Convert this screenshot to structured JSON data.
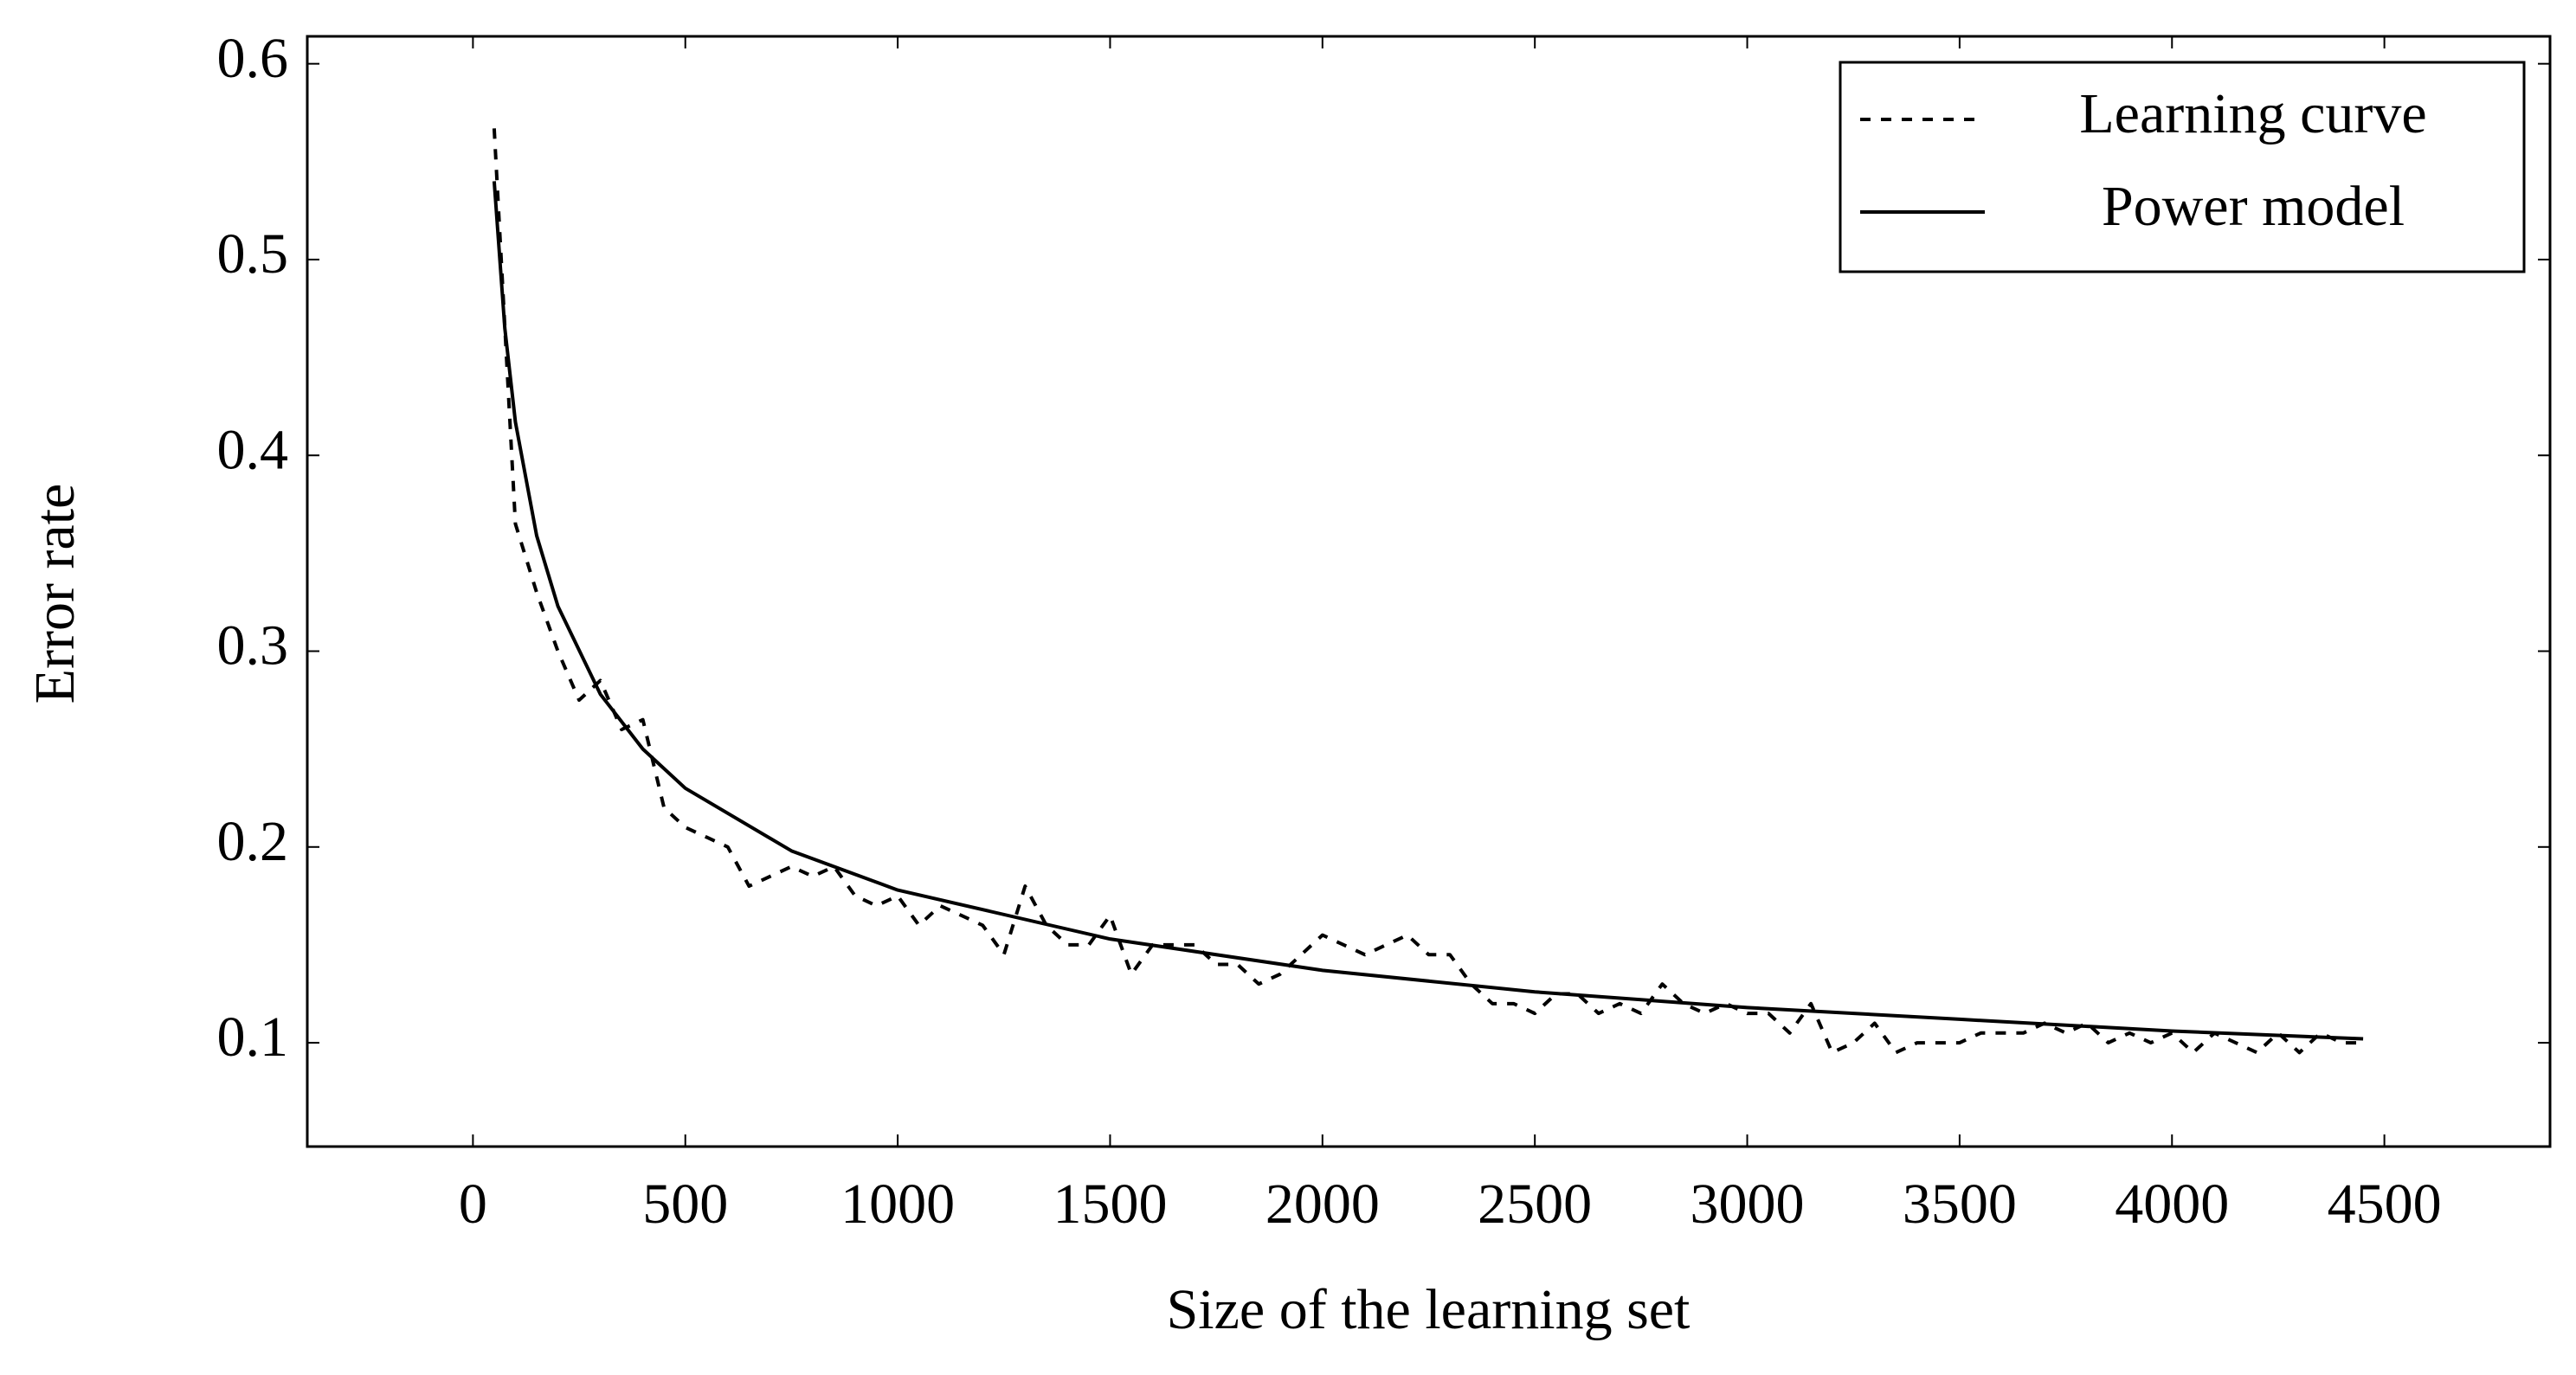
{
  "chart_data": {
    "type": "line",
    "xlabel": "Size of the learning set",
    "ylabel": "Error rate",
    "xlim": [
      -390,
      4890
    ],
    "ylim": [
      0.047,
      0.614
    ],
    "xticks": [
      0,
      500,
      1000,
      1500,
      2000,
      2500,
      3000,
      3500,
      4000,
      4500
    ],
    "yticks": [
      0.1,
      0.2,
      0.3,
      0.4,
      0.5,
      0.6
    ],
    "legend": "upper right",
    "series": [
      {
        "name": "Learning curve",
        "color": "#000000",
        "dashed": true,
        "x": [
          50,
          100,
          150,
          200,
          250,
          300,
          350,
          400,
          450,
          500,
          550,
          600,
          650,
          700,
          750,
          800,
          850,
          900,
          950,
          1000,
          1050,
          1100,
          1150,
          1200,
          1250,
          1300,
          1350,
          1400,
          1450,
          1500,
          1550,
          1600,
          1650,
          1700,
          1750,
          1800,
          1850,
          1900,
          1950,
          2000,
          2050,
          2100,
          2150,
          2200,
          2250,
          2300,
          2350,
          2400,
          2450,
          2500,
          2550,
          2600,
          2650,
          2700,
          2750,
          2800,
          2850,
          2900,
          2950,
          3000,
          3050,
          3100,
          3150,
          3200,
          3250,
          3300,
          3350,
          3400,
          3450,
          3500,
          3550,
          3600,
          3650,
          3700,
          3750,
          3800,
          3850,
          3900,
          3950,
          4000,
          4050,
          4100,
          4150,
          4200,
          4250,
          4300,
          4350,
          4400,
          4450
        ],
        "values": [
          0.567,
          0.365,
          0.33,
          0.3,
          0.275,
          0.285,
          0.26,
          0.265,
          0.22,
          0.21,
          0.205,
          0.2,
          0.18,
          0.185,
          0.19,
          0.185,
          0.19,
          0.175,
          0.17,
          0.175,
          0.16,
          0.17,
          0.165,
          0.16,
          0.145,
          0.18,
          0.16,
          0.15,
          0.15,
          0.165,
          0.135,
          0.15,
          0.15,
          0.15,
          0.14,
          0.14,
          0.13,
          0.135,
          0.145,
          0.155,
          0.15,
          0.145,
          0.15,
          0.155,
          0.145,
          0.145,
          0.13,
          0.12,
          0.12,
          0.115,
          0.125,
          0.125,
          0.115,
          0.12,
          0.115,
          0.13,
          0.12,
          0.115,
          0.12,
          0.115,
          0.115,
          0.105,
          0.12,
          0.095,
          0.1,
          0.11,
          0.095,
          0.1,
          0.1,
          0.1,
          0.105,
          0.105,
          0.105,
          0.11,
          0.105,
          0.11,
          0.1,
          0.105,
          0.1,
          0.105,
          0.095,
          0.105,
          0.1,
          0.095,
          0.105,
          0.095,
          0.105,
          0.1,
          0.1
        ]
      },
      {
        "name": "Power model",
        "color": "#000000",
        "dashed": false,
        "x": [
          50,
          75,
          100,
          150,
          200,
          300,
          400,
          500,
          750,
          1000,
          1500,
          2000,
          2500,
          3000,
          3500,
          4000,
          4450
        ],
        "values": [
          0.54,
          0.465,
          0.417,
          0.359,
          0.323,
          0.278,
          0.25,
          0.23,
          0.198,
          0.178,
          0.153,
          0.137,
          0.126,
          0.118,
          0.112,
          0.106,
          0.102
        ]
      }
    ]
  }
}
